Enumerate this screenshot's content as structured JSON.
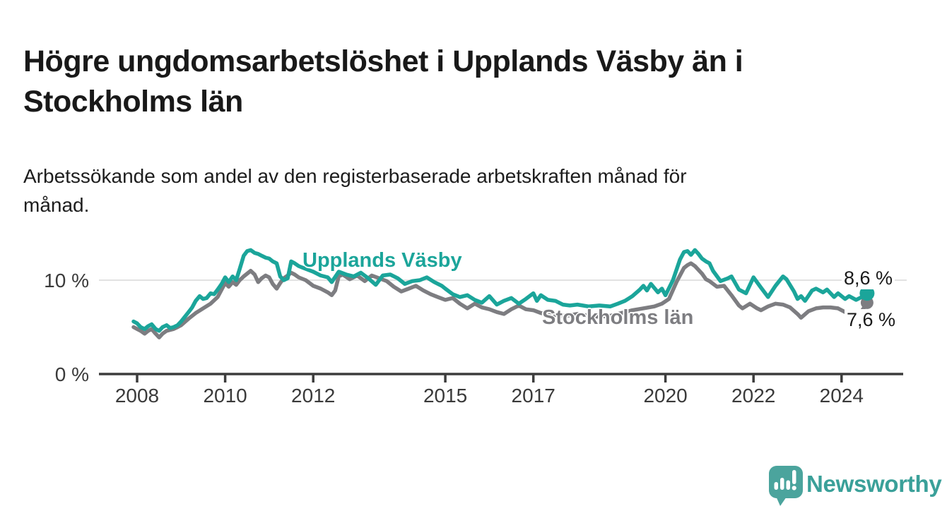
{
  "header": {
    "title_line1": "Högre ungdomsarbetslöshet i Upplands Väsby än i",
    "title_line2": "Stockholms län",
    "subtitle_line1": "Arbetssökande som andel av den registerbaserade arbetskraften månad för",
    "subtitle_line2": "månad."
  },
  "branding": {
    "logo_text": "Newsworthy",
    "logo_color": "#4ba49d",
    "logo_text_color": "#3aa099",
    "logo_icon": "speech-bubble-bar-chart-icon"
  },
  "chart_data": {
    "type": "line",
    "title": "Högre ungdomsarbetslöshet i Upplands Väsby än i Stockholms län",
    "subtitle": "Arbetssökande som andel av den registerbaserade arbetskraften månad för månad.",
    "x_unit": "decimal_year",
    "ylabel": "",
    "xlabel": "",
    "ylim": [
      0,
      15
    ],
    "xlim": [
      2007.8,
      2025.4
    ],
    "grid": "horizontal line at 10% only",
    "legend_position": "inline-labels-on-lines",
    "x_ticks": [
      {
        "year": 2008,
        "label": "2008"
      },
      {
        "year": 2010,
        "label": "2010"
      },
      {
        "year": 2012,
        "label": "2012"
      },
      {
        "year": 2015,
        "label": "2015"
      },
      {
        "year": 2017,
        "label": "2017"
      },
      {
        "year": 2020,
        "label": "2020"
      },
      {
        "year": 2022,
        "label": "2022"
      },
      {
        "year": 2024,
        "label": "2024"
      }
    ],
    "y_ticks": [
      {
        "value": 0,
        "label": "0 %"
      },
      {
        "value": 10,
        "label": "10 %"
      }
    ],
    "series": [
      {
        "name": "Upplands Väsby",
        "color": "#1ba59a",
        "end_label": "8,6 %",
        "end_value": 8.6,
        "points": [
          [
            2007.92,
            5.6
          ],
          [
            2008.0,
            5.4
          ],
          [
            2008.08,
            5.0
          ],
          [
            2008.17,
            4.8
          ],
          [
            2008.25,
            5.1
          ],
          [
            2008.33,
            5.3
          ],
          [
            2008.42,
            4.8
          ],
          [
            2008.5,
            4.6
          ],
          [
            2008.58,
            5.0
          ],
          [
            2008.67,
            5.2
          ],
          [
            2008.75,
            4.9
          ],
          [
            2008.83,
            5.0
          ],
          [
            2008.92,
            5.2
          ],
          [
            2009.0,
            5.6
          ],
          [
            2009.17,
            6.6
          ],
          [
            2009.25,
            7.1
          ],
          [
            2009.33,
            7.8
          ],
          [
            2009.42,
            8.3
          ],
          [
            2009.5,
            8.0
          ],
          [
            2009.58,
            8.1
          ],
          [
            2009.67,
            8.6
          ],
          [
            2009.75,
            8.5
          ],
          [
            2009.83,
            9.0
          ],
          [
            2009.92,
            9.6
          ],
          [
            2010.0,
            10.3
          ],
          [
            2010.08,
            9.8
          ],
          [
            2010.17,
            10.4
          ],
          [
            2010.25,
            10.0
          ],
          [
            2010.33,
            11.2
          ],
          [
            2010.42,
            12.6
          ],
          [
            2010.5,
            13.1
          ],
          [
            2010.58,
            13.2
          ],
          [
            2010.67,
            12.9
          ],
          [
            2010.75,
            12.8
          ],
          [
            2010.83,
            12.6
          ],
          [
            2010.92,
            12.4
          ],
          [
            2011.0,
            12.3
          ],
          [
            2011.08,
            12.0
          ],
          [
            2011.17,
            11.8
          ],
          [
            2011.25,
            10.4
          ],
          [
            2011.33,
            10.0
          ],
          [
            2011.42,
            10.2
          ],
          [
            2011.5,
            12.0
          ],
          [
            2011.58,
            11.8
          ],
          [
            2011.67,
            11.5
          ],
          [
            2011.83,
            11.2
          ],
          [
            2012.0,
            10.9
          ],
          [
            2012.17,
            10.5
          ],
          [
            2012.33,
            10.3
          ],
          [
            2012.42,
            9.8
          ],
          [
            2012.58,
            10.9
          ],
          [
            2012.75,
            10.6
          ],
          [
            2012.92,
            10.4
          ],
          [
            2013.08,
            10.8
          ],
          [
            2013.25,
            10.2
          ],
          [
            2013.42,
            9.5
          ],
          [
            2013.58,
            10.5
          ],
          [
            2013.75,
            10.6
          ],
          [
            2013.92,
            10.2
          ],
          [
            2014.08,
            9.6
          ],
          [
            2014.25,
            9.9
          ],
          [
            2014.42,
            10.0
          ],
          [
            2014.58,
            10.3
          ],
          [
            2014.75,
            9.8
          ],
          [
            2014.92,
            9.4
          ],
          [
            2015.0,
            9.1
          ],
          [
            2015.17,
            8.5
          ],
          [
            2015.33,
            8.2
          ],
          [
            2015.5,
            8.4
          ],
          [
            2015.67,
            7.9
          ],
          [
            2015.83,
            7.6
          ],
          [
            2016.0,
            8.3
          ],
          [
            2016.17,
            7.4
          ],
          [
            2016.33,
            7.8
          ],
          [
            2016.5,
            8.1
          ],
          [
            2016.67,
            7.5
          ],
          [
            2016.83,
            8.0
          ],
          [
            2017.0,
            8.6
          ],
          [
            2017.08,
            7.8
          ],
          [
            2017.17,
            8.4
          ],
          [
            2017.33,
            7.9
          ],
          [
            2017.5,
            7.8
          ],
          [
            2017.67,
            7.4
          ],
          [
            2017.83,
            7.3
          ],
          [
            2018.0,
            7.4
          ],
          [
            2018.25,
            7.2
          ],
          [
            2018.5,
            7.3
          ],
          [
            2018.75,
            7.2
          ],
          [
            2018.92,
            7.5
          ],
          [
            2019.08,
            7.8
          ],
          [
            2019.25,
            8.3
          ],
          [
            2019.42,
            9.0
          ],
          [
            2019.5,
            9.4
          ],
          [
            2019.58,
            8.9
          ],
          [
            2019.67,
            9.6
          ],
          [
            2019.83,
            8.7
          ],
          [
            2019.92,
            9.1
          ],
          [
            2020.0,
            8.4
          ],
          [
            2020.17,
            10.0
          ],
          [
            2020.33,
            12.2
          ],
          [
            2020.42,
            13.0
          ],
          [
            2020.5,
            13.1
          ],
          [
            2020.58,
            12.7
          ],
          [
            2020.67,
            13.2
          ],
          [
            2020.75,
            12.8
          ],
          [
            2020.83,
            12.3
          ],
          [
            2020.92,
            12.0
          ],
          [
            2021.0,
            11.8
          ],
          [
            2021.08,
            11.0
          ],
          [
            2021.25,
            9.9
          ],
          [
            2021.42,
            10.2
          ],
          [
            2021.5,
            10.4
          ],
          [
            2021.67,
            9.0
          ],
          [
            2021.83,
            8.6
          ],
          [
            2022.0,
            10.3
          ],
          [
            2022.17,
            9.2
          ],
          [
            2022.33,
            8.2
          ],
          [
            2022.5,
            9.4
          ],
          [
            2022.67,
            10.4
          ],
          [
            2022.75,
            10.1
          ],
          [
            2022.92,
            8.8
          ],
          [
            2023.0,
            8.0
          ],
          [
            2023.08,
            8.3
          ],
          [
            2023.17,
            7.8
          ],
          [
            2023.33,
            8.9
          ],
          [
            2023.42,
            9.1
          ],
          [
            2023.58,
            8.7
          ],
          [
            2023.67,
            9.0
          ],
          [
            2023.83,
            8.2
          ],
          [
            2023.92,
            8.6
          ],
          [
            2024.08,
            8.0
          ],
          [
            2024.17,
            8.3
          ],
          [
            2024.33,
            7.9
          ],
          [
            2024.5,
            8.3
          ],
          [
            2024.58,
            8.6
          ]
        ]
      },
      {
        "name": "Stockholms län",
        "color": "#7d7d81",
        "end_label": "7,6 %",
        "end_value": 7.6,
        "points": [
          [
            2007.92,
            5.0
          ],
          [
            2008.0,
            4.8
          ],
          [
            2008.08,
            4.6
          ],
          [
            2008.17,
            4.3
          ],
          [
            2008.25,
            4.6
          ],
          [
            2008.33,
            4.8
          ],
          [
            2008.42,
            4.3
          ],
          [
            2008.5,
            3.9
          ],
          [
            2008.58,
            4.3
          ],
          [
            2008.67,
            4.6
          ],
          [
            2008.75,
            4.7
          ],
          [
            2008.83,
            4.8
          ],
          [
            2008.92,
            5.0
          ],
          [
            2009.0,
            5.2
          ],
          [
            2009.17,
            5.9
          ],
          [
            2009.33,
            6.5
          ],
          [
            2009.5,
            7.0
          ],
          [
            2009.67,
            7.5
          ],
          [
            2009.83,
            8.2
          ],
          [
            2009.92,
            9.0
          ],
          [
            2010.0,
            9.7
          ],
          [
            2010.08,
            9.3
          ],
          [
            2010.17,
            9.8
          ],
          [
            2010.25,
            9.5
          ],
          [
            2010.33,
            10.0
          ],
          [
            2010.42,
            10.4
          ],
          [
            2010.5,
            10.7
          ],
          [
            2010.58,
            11.0
          ],
          [
            2010.67,
            10.6
          ],
          [
            2010.75,
            9.8
          ],
          [
            2010.83,
            10.2
          ],
          [
            2010.92,
            10.5
          ],
          [
            2011.0,
            10.3
          ],
          [
            2011.08,
            9.6
          ],
          [
            2011.17,
            9.1
          ],
          [
            2011.25,
            9.7
          ],
          [
            2011.33,
            10.2
          ],
          [
            2011.42,
            10.5
          ],
          [
            2011.5,
            10.8
          ],
          [
            2011.58,
            10.6
          ],
          [
            2011.67,
            10.3
          ],
          [
            2011.83,
            10.0
          ],
          [
            2012.0,
            9.4
          ],
          [
            2012.17,
            9.1
          ],
          [
            2012.33,
            8.7
          ],
          [
            2012.42,
            8.4
          ],
          [
            2012.5,
            8.9
          ],
          [
            2012.58,
            10.4
          ],
          [
            2012.67,
            10.6
          ],
          [
            2012.83,
            10.1
          ],
          [
            2013.0,
            10.5
          ],
          [
            2013.17,
            9.9
          ],
          [
            2013.33,
            10.5
          ],
          [
            2013.5,
            10.2
          ],
          [
            2013.67,
            9.9
          ],
          [
            2013.83,
            9.3
          ],
          [
            2014.0,
            8.8
          ],
          [
            2014.17,
            9.1
          ],
          [
            2014.33,
            9.4
          ],
          [
            2014.5,
            8.9
          ],
          [
            2014.67,
            8.5
          ],
          [
            2014.83,
            8.2
          ],
          [
            2015.0,
            7.9
          ],
          [
            2015.17,
            8.1
          ],
          [
            2015.33,
            7.5
          ],
          [
            2015.5,
            7.0
          ],
          [
            2015.67,
            7.5
          ],
          [
            2015.83,
            7.1
          ],
          [
            2016.0,
            6.9
          ],
          [
            2016.17,
            6.6
          ],
          [
            2016.33,
            6.4
          ],
          [
            2016.5,
            6.9
          ],
          [
            2016.67,
            7.3
          ],
          [
            2016.83,
            6.9
          ],
          [
            2017.0,
            6.8
          ],
          [
            2017.17,
            6.5
          ],
          [
            2017.33,
            6.4
          ],
          [
            2017.5,
            6.3
          ],
          [
            2017.75,
            6.2
          ],
          [
            2018.0,
            6.4
          ],
          [
            2018.25,
            6.2
          ],
          [
            2018.5,
            6.1
          ],
          [
            2018.75,
            6.2
          ],
          [
            2019.0,
            6.5
          ],
          [
            2019.25,
            6.8
          ],
          [
            2019.5,
            7.0
          ],
          [
            2019.75,
            7.2
          ],
          [
            2019.92,
            7.5
          ],
          [
            2020.08,
            8.0
          ],
          [
            2020.25,
            9.8
          ],
          [
            2020.42,
            11.3
          ],
          [
            2020.5,
            11.6
          ],
          [
            2020.58,
            11.8
          ],
          [
            2020.67,
            11.5
          ],
          [
            2020.83,
            10.7
          ],
          [
            2020.92,
            10.1
          ],
          [
            2021.0,
            9.9
          ],
          [
            2021.17,
            9.3
          ],
          [
            2021.33,
            9.4
          ],
          [
            2021.5,
            8.4
          ],
          [
            2021.67,
            7.3
          ],
          [
            2021.75,
            7.0
          ],
          [
            2021.92,
            7.5
          ],
          [
            2022.08,
            7.0
          ],
          [
            2022.17,
            6.8
          ],
          [
            2022.33,
            7.2
          ],
          [
            2022.5,
            7.5
          ],
          [
            2022.67,
            7.4
          ],
          [
            2022.83,
            7.1
          ],
          [
            2023.0,
            6.4
          ],
          [
            2023.08,
            6.0
          ],
          [
            2023.25,
            6.7
          ],
          [
            2023.42,
            7.0
          ],
          [
            2023.58,
            7.1
          ],
          [
            2023.75,
            7.1
          ],
          [
            2023.92,
            7.0
          ],
          [
            2024.08,
            6.6
          ],
          [
            2024.25,
            6.7
          ],
          [
            2024.42,
            6.5
          ],
          [
            2024.5,
            7.0
          ],
          [
            2024.58,
            7.6
          ]
        ]
      }
    ]
  }
}
